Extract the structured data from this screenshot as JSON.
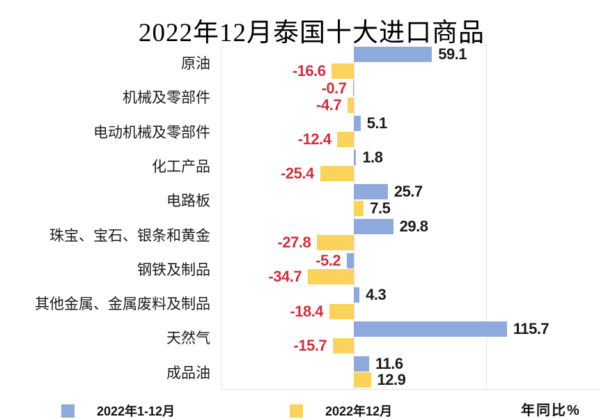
{
  "title": "2022年12月泰国十大进口商品",
  "footer_note": "年同比%",
  "legend": [
    {
      "label": "2022年1-12月",
      "color": "#8EA9DB"
    },
    {
      "label": "2022年12月",
      "color": "#FBD35C"
    }
  ],
  "colors": {
    "series_annual": "#8EA9DB",
    "series_december": "#FBD35C",
    "value_positive": "#1A1A1A",
    "value_negative": "#C9323F",
    "gridline": "#E4E4E4"
  },
  "chart_data": {
    "type": "bar",
    "orientation": "horizontal",
    "title": "2022年12月泰国十大进口商品",
    "unit": "年同比%",
    "legend_position": "bottom",
    "grid": "vertical gridlines at -100, 0, 100",
    "xlim": [
      -100,
      192
    ],
    "gridline_values": [
      -100,
      0,
      100
    ],
    "categories": [
      "原油",
      "机械及零部件",
      "电动机械及零部件",
      "化工产品",
      "电路板",
      "珠宝、宝石、银条和黄金",
      "钢铁及制品",
      "其他金属、金属废料及制品",
      "天然气",
      "成品油"
    ],
    "series": [
      {
        "name": "2022年1-12月",
        "color": "#8EA9DB",
        "values": [
          59.1,
          -0.7,
          5.1,
          1.8,
          25.7,
          29.8,
          -5.2,
          4.3,
          115.7,
          11.6
        ]
      },
      {
        "name": "2022年12月",
        "color": "#FBD35C",
        "values": [
          -16.6,
          -4.7,
          -12.4,
          -25.4,
          7.5,
          -27.8,
          -34.7,
          -18.4,
          -15.7,
          12.9
        ]
      }
    ]
  }
}
